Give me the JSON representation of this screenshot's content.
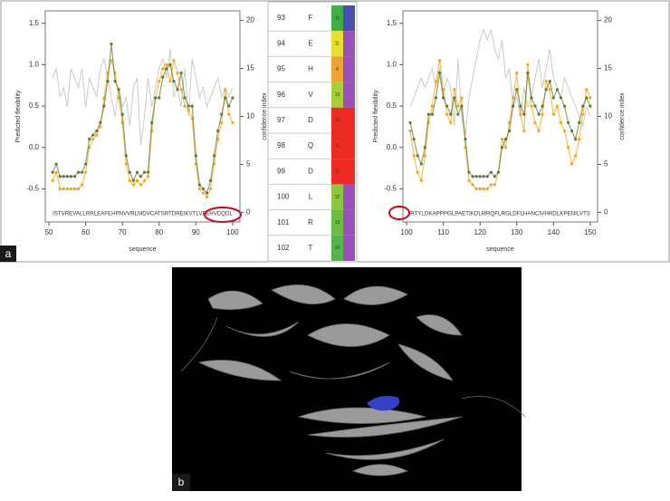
{
  "chart_data": [
    {
      "type": "line",
      "x_label": "sequence",
      "y_label": "Predicted flexibility",
      "y2_label": "confidence index",
      "sequence": "ISTVREVALLRRLEAFEHPNVVRLMDVCATSRTDREIKVTLVFEHVDQDL",
      "x": [
        51,
        52,
        53,
        54,
        55,
        56,
        57,
        58,
        59,
        60,
        61,
        62,
        63,
        64,
        65,
        66,
        67,
        68,
        69,
        70,
        71,
        72,
        73,
        74,
        75,
        76,
        77,
        78,
        79,
        80,
        81,
        82,
        83,
        84,
        85,
        86,
        87,
        88,
        89,
        90,
        91,
        92,
        93,
        94,
        95,
        96,
        97,
        98,
        99,
        100
      ],
      "series": [
        {
          "color": "#bdbdbd",
          "axis": "y2",
          "values": [
            14,
            15,
            12,
            13,
            11,
            15,
            14,
            13,
            15,
            11,
            14,
            13,
            12,
            15,
            16,
            14,
            12,
            10,
            13,
            11,
            12,
            9,
            13,
            14,
            7,
            10,
            14,
            11,
            13,
            15,
            16,
            14,
            17,
            12,
            13,
            11,
            15,
            10,
            16,
            14,
            12,
            13,
            11,
            12,
            13,
            14,
            12,
            13,
            12,
            13
          ]
        },
        {
          "color": "#f2a516",
          "values": [
            -0.4,
            -0.3,
            -0.5,
            -0.5,
            -0.5,
            -0.5,
            -0.5,
            -0.5,
            -0.45,
            -0.3,
            0.0,
            0.1,
            0.15,
            0.25,
            0.6,
            0.9,
            1.05,
            0.9,
            0.6,
            0.3,
            -0.2,
            -0.4,
            -0.45,
            -0.4,
            -0.45,
            -0.4,
            -0.35,
            0.2,
            0.6,
            0.8,
            0.95,
            1.0,
            0.8,
            1.05,
            0.9,
            0.7,
            0.5,
            0.45,
            0.35,
            -0.2,
            -0.5,
            -0.55,
            -0.6,
            -0.5,
            -0.2,
            0.1,
            0.3,
            0.7,
            0.4,
            0.3
          ]
        },
        {
          "color": "#5c7a34",
          "values": [
            -0.3,
            -0.2,
            -0.35,
            -0.35,
            -0.35,
            -0.35,
            -0.35,
            -0.3,
            -0.3,
            -0.2,
            0.1,
            0.15,
            0.2,
            0.3,
            0.5,
            0.8,
            1.25,
            0.8,
            0.7,
            0.4,
            -0.1,
            -0.3,
            -0.4,
            -0.3,
            -0.35,
            -0.3,
            -0.3,
            0.3,
            0.6,
            0.6,
            0.85,
            0.95,
            1.0,
            0.8,
            0.7,
            0.9,
            0.6,
            0.5,
            0.5,
            -0.1,
            -0.45,
            -0.5,
            -0.55,
            -0.4,
            -0.1,
            0.2,
            0.4,
            0.6,
            0.5,
            0.6
          ]
        }
      ],
      "xlim": [
        49,
        102
      ],
      "xticks": [
        50,
        60,
        70,
        80,
        90,
        100
      ],
      "ylim": [
        -0.9,
        1.65
      ],
      "yticks": [
        -0.5,
        {
          "value": 0,
          "label": "0.0"
        },
        0.5,
        {
          "value": 1,
          "label": "1.0"
        },
        1.5
      ],
      "y2lim": [
        -1,
        21
      ],
      "y2ticks": [
        0,
        5,
        10,
        15,
        20
      ]
    },
    {
      "type": "line",
      "x_label": "sequence",
      "y_label": "Predicted flexibility",
      "y2_label": "confidence index",
      "sequence": "RTYLDKAPPPGLPAETIKDLMRQFLRGLDFLHANCIVHRDLKPENILVTS",
      "x": [
        101,
        102,
        103,
        104,
        105,
        106,
        107,
        108,
        109,
        110,
        111,
        112,
        113,
        114,
        115,
        116,
        117,
        118,
        119,
        120,
        121,
        122,
        123,
        124,
        125,
        126,
        127,
        128,
        129,
        130,
        131,
        132,
        133,
        134,
        135,
        136,
        137,
        138,
        139,
        140,
        141,
        142,
        143,
        144,
        145,
        146,
        147,
        148,
        149,
        150
      ],
      "series": [
        {
          "color": "#bdbdbd",
          "axis": "y2",
          "values": [
            11,
            12,
            13,
            14,
            13,
            14,
            15,
            13,
            15,
            12,
            14,
            13,
            9,
            16,
            10,
            8,
            12,
            14,
            16,
            18,
            19,
            18,
            19,
            17,
            16,
            18,
            14,
            15,
            11,
            12,
            10,
            13,
            11,
            12,
            14,
            16,
            13,
            15,
            17,
            14,
            13,
            12,
            14,
            13,
            12,
            11,
            10,
            9,
            11,
            10
          ]
        },
        {
          "color": "#f2a516",
          "values": [
            0.2,
            -0.1,
            -0.3,
            -0.4,
            -0.1,
            0.3,
            0.5,
            0.8,
            1.05,
            0.7,
            0.4,
            0.3,
            0.7,
            0.5,
            0.6,
            0.0,
            -0.4,
            -0.45,
            -0.5,
            -0.5,
            -0.5,
            -0.5,
            -0.45,
            -0.45,
            -0.3,
            0.1,
            0.0,
            0.3,
            0.6,
            0.9,
            0.4,
            0.2,
            1.0,
            0.5,
            0.3,
            0.2,
            0.4,
            0.8,
            0.7,
            0.4,
            0.5,
            0.3,
            0.2,
            0.0,
            -0.2,
            -0.1,
            0.1,
            0.4,
            0.7,
            0.6
          ]
        },
        {
          "color": "#5c7a34",
          "values": [
            0.3,
            0.1,
            -0.1,
            -0.2,
            0.0,
            0.4,
            0.4,
            0.6,
            0.9,
            0.6,
            0.5,
            0.4,
            0.6,
            0.4,
            0.5,
            0.1,
            -0.3,
            -0.35,
            -0.35,
            -0.35,
            -0.35,
            -0.35,
            -0.3,
            -0.35,
            -0.3,
            0.0,
            0.1,
            0.2,
            0.5,
            0.7,
            0.5,
            0.4,
            0.9,
            0.6,
            0.5,
            0.4,
            0.5,
            0.7,
            0.8,
            0.6,
            0.7,
            0.6,
            0.5,
            0.3,
            0.2,
            0.1,
            0.3,
            0.5,
            0.6,
            0.5
          ]
        }
      ],
      "xlim": [
        99,
        152
      ],
      "xticks": [
        100,
        110,
        120,
        130,
        140,
        150
      ],
      "ylim": [
        -0.9,
        1.65
      ],
      "yticks": [
        -0.5,
        {
          "value": 0,
          "label": "0.0"
        },
        0.5,
        {
          "value": 1,
          "label": "1.0"
        },
        1.5
      ],
      "y2lim": [
        -1,
        21
      ],
      "y2ticks": [
        0,
        5,
        10,
        15,
        20
      ]
    }
  ],
  "table": {
    "rows": [
      {
        "position": "93",
        "residue": "F",
        "score": "11",
        "color": "#3fae49",
        "class_color": "#4a4fb0"
      },
      {
        "position": "94",
        "residue": "E",
        "score": "11",
        "color": "#e6e02a",
        "class_color": "#9b4fb8"
      },
      {
        "position": "95",
        "residue": "H",
        "score": "8",
        "color": "#eda33a",
        "class_color": "#9b4fb8"
      },
      {
        "position": "96",
        "residue": "V",
        "score": "13",
        "color": "#a6cf3a",
        "class_color": "#9b4fb8"
      },
      {
        "position": "97",
        "residue": "D",
        "score": "10",
        "color": "#ec2a24",
        "class_color": "#ec2a24"
      },
      {
        "position": "98",
        "residue": "Q",
        "score": "9",
        "color": "#ec2a24",
        "class_color": "#ec2a24"
      },
      {
        "position": "99",
        "residue": "D",
        "score": "11",
        "color": "#ec2a24",
        "class_color": "#ec2a24"
      },
      {
        "position": "100",
        "residue": "L",
        "score": "12",
        "color": "#8cc63f",
        "class_color": "#9b4fb8"
      },
      {
        "position": "101",
        "residue": "R",
        "score": "13",
        "color": "#6cbd45",
        "class_color": "#9b4fb8"
      },
      {
        "position": "102",
        "residue": "T",
        "score": "14",
        "color": "#55b548",
        "class_color": "#9b4fb8"
      }
    ]
  },
  "panels": {
    "a": "a",
    "b": "b"
  }
}
